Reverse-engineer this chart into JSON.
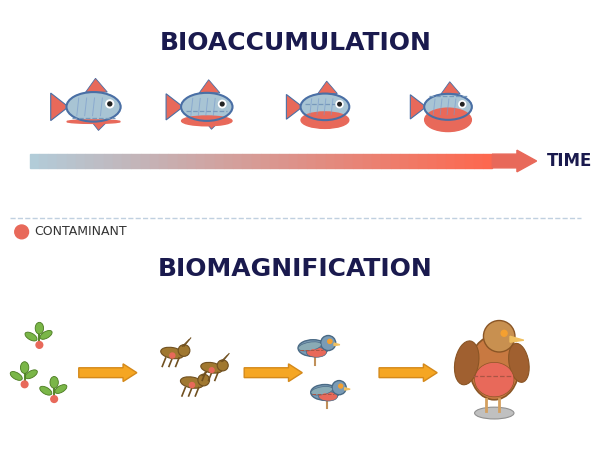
{
  "title_bio_acc": "BIOACCUMULATION",
  "title_bio_mag": "BIOMAGNIFICATION",
  "title_fontsize": 18,
  "title_color": "#1a1a4e",
  "bg_color": "#ffffff",
  "contaminant_color": "#e8695a",
  "fish_blue": "#a8c4d4",
  "fish_outline": "#4a6fa5",
  "fish_red": "#e8695a",
  "arrow_yellow": "#f5a623",
  "time_label": "TIME",
  "contaminant_label": "CONTAMINANT",
  "legend_dot_color": "#e8695a",
  "divider_color": "#c0d0e0",
  "plant_green": "#7ab648",
  "plant_red": "#e8695a",
  "grasshopper_brown": "#b8860b",
  "bird_blue": "#7a9bb5",
  "bird_red": "#e8695a",
  "eagle_brown": "#c87941",
  "eagle_red": "#e8695a"
}
